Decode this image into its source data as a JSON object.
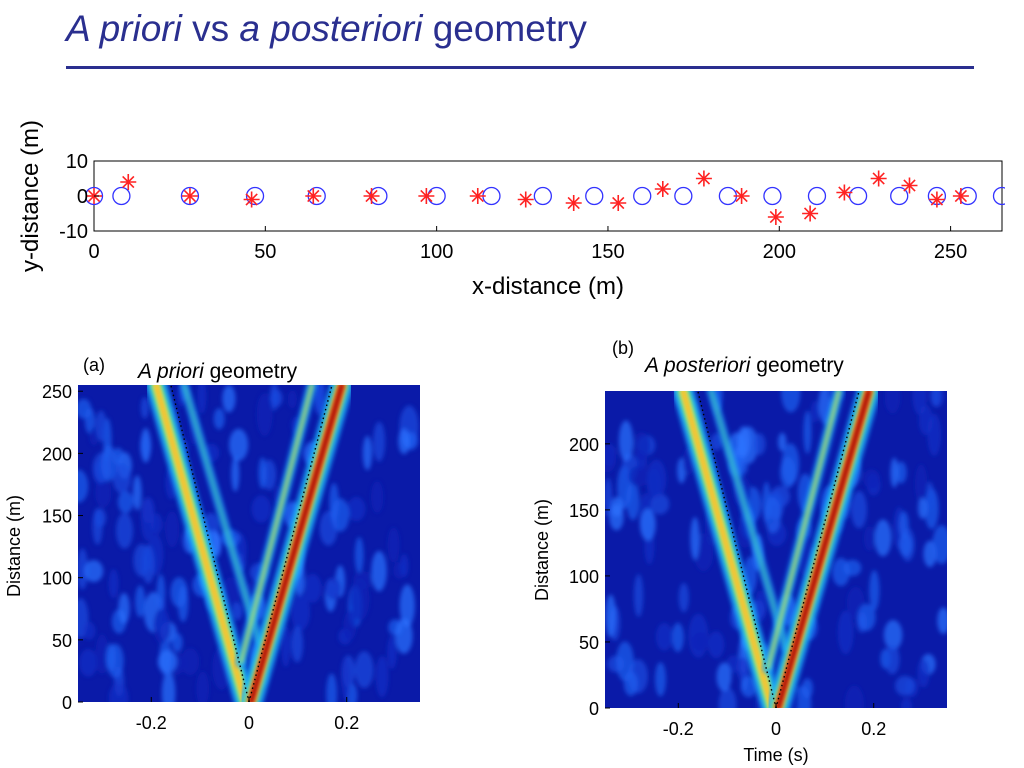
{
  "slide": {
    "title_part1": "A priori",
    "title_part2": " vs ",
    "title_part3": "a posteriori",
    "title_part4": " geometry",
    "accent_color": "#2a2f8f"
  },
  "chart_data": [
    {
      "type": "scatter",
      "xlabel": "x-distance (m)",
      "ylabel": "y-distance (m)",
      "xlim": [
        0,
        265
      ],
      "ylim": [
        -10,
        10
      ],
      "xticks": [
        "0",
        "50",
        "100",
        "150",
        "200",
        "250"
      ],
      "yticks": [
        "10",
        "0",
        "-10"
      ],
      "series": [
        {
          "marker": "circle",
          "color": "#3333ff",
          "x": [
            0,
            8,
            28,
            47,
            65,
            83,
            100,
            116,
            131,
            146,
            160,
            172,
            185,
            198,
            211,
            223,
            235,
            246,
            255,
            265
          ],
          "y": [
            0,
            0,
            0,
            0,
            0,
            0,
            0,
            0,
            0,
            0,
            0,
            0,
            0,
            0,
            0,
            0,
            0,
            0,
            0,
            0
          ]
        },
        {
          "marker": "asterisk",
          "color": "#ff2222",
          "x": [
            0,
            10,
            28,
            46,
            64,
            81,
            97,
            112,
            126,
            140,
            153,
            166,
            178,
            189,
            199,
            209,
            219,
            229,
            238,
            246,
            253
          ],
          "y": [
            0,
            4,
            0,
            -1,
            0,
            0,
            0,
            0,
            -1,
            -2,
            -2,
            2,
            5,
            0,
            -6,
            -5,
            1,
            5,
            3,
            -1,
            0
          ]
        }
      ]
    },
    {
      "type": "heatmap",
      "panel_label": "(a)",
      "title_italic": "A priori",
      "title_rest": " geometry",
      "xlabel": "",
      "ylabel": "Distance (m)",
      "xlim": [
        -0.35,
        0.35
      ],
      "ylim": [
        0,
        255
      ],
      "xticks": [
        "-0.2",
        "0",
        "0.2"
      ],
      "yticks": [
        "0",
        "50",
        "100",
        "150",
        "200",
        "250"
      ],
      "colormap": "jet"
    },
    {
      "type": "heatmap",
      "panel_label": "(b)",
      "title_italic": "A posteriori",
      "title_rest": " geometry",
      "xlabel": "Time (s)",
      "ylabel": "Distance (m)",
      "xlim": [
        -0.35,
        0.35
      ],
      "ylim": [
        0,
        240
      ],
      "xticks": [
        "-0.2",
        "0",
        "0.2"
      ],
      "yticks": [
        "0",
        "50",
        "100",
        "150",
        "200"
      ],
      "colormap": "jet"
    }
  ]
}
